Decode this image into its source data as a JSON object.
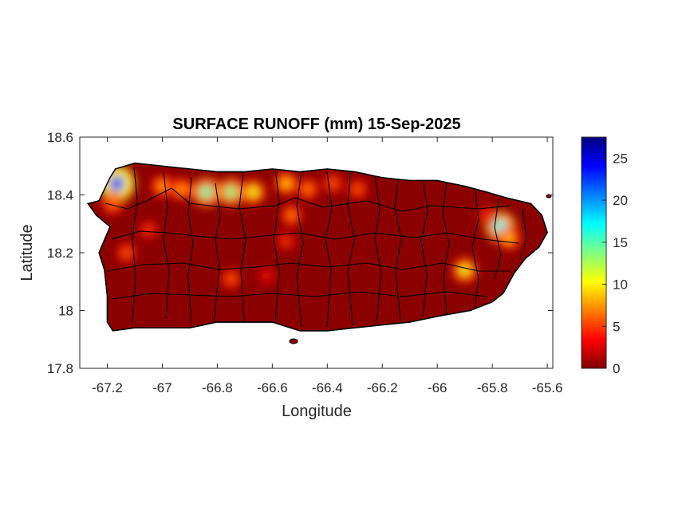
{
  "chart_data": {
    "type": "heatmap",
    "title": "SURFACE RUNOFF (mm) 15-Sep-2025",
    "xlabel": "Longitude",
    "ylabel": "Latitude",
    "xlim": [
      -67.3,
      -65.58
    ],
    "ylim": [
      17.8,
      18.6
    ],
    "x_ticks": [
      -67.2,
      -67,
      -66.8,
      -66.6,
      -66.4,
      -66.2,
      -66,
      -65.8,
      -65.6
    ],
    "x_tick_labels": [
      "-67.2",
      "-67",
      "-66.8",
      "-66.6",
      "-66.4",
      "-66.2",
      "-66",
      "-65.8",
      "-65.6"
    ],
    "y_ticks": [
      17.8,
      18,
      18.2,
      18.4,
      18.6
    ],
    "y_tick_labels": [
      "17.8",
      "18",
      "18.2",
      "18.4",
      "18.6"
    ],
    "grid": false,
    "colormap": "jet",
    "colorbar": {
      "min": 0,
      "max": 27.5,
      "ticks": [
        0,
        5,
        10,
        15,
        20,
        25
      ],
      "tick_labels": [
        "0",
        "5",
        "10",
        "15",
        "20",
        "25"
      ],
      "colors": [
        "#800000",
        "#ff0000",
        "#ff8000",
        "#ffff00",
        "#80ff80",
        "#00ffff",
        "#0080ff",
        "#0000ff",
        "#000080"
      ]
    },
    "background_value": 0,
    "background_color": "#8b0000",
    "island_outline": [
      [
        -67.27,
        18.37
      ],
      [
        -67.23,
        18.38
      ],
      [
        -67.19,
        18.46
      ],
      [
        -67.17,
        18.49
      ],
      [
        -67.1,
        18.51
      ],
      [
        -67.0,
        18.5
      ],
      [
        -66.9,
        18.49
      ],
      [
        -66.8,
        18.48
      ],
      [
        -66.7,
        18.48
      ],
      [
        -66.6,
        18.49
      ],
      [
        -66.5,
        18.48
      ],
      [
        -66.4,
        18.49
      ],
      [
        -66.3,
        18.48
      ],
      [
        -66.2,
        18.46
      ],
      [
        -66.1,
        18.45
      ],
      [
        -66.0,
        18.45
      ],
      [
        -65.9,
        18.43
      ],
      [
        -65.82,
        18.41
      ],
      [
        -65.75,
        18.39
      ],
      [
        -65.66,
        18.37
      ],
      [
        -65.62,
        18.33
      ],
      [
        -65.6,
        18.27
      ],
      [
        -65.63,
        18.22
      ],
      [
        -65.68,
        18.18
      ],
      [
        -65.72,
        18.13
      ],
      [
        -65.76,
        18.06
      ],
      [
        -65.8,
        18.03
      ],
      [
        -65.88,
        18.0
      ],
      [
        -66.0,
        17.98
      ],
      [
        -66.1,
        17.96
      ],
      [
        -66.2,
        17.95
      ],
      [
        -66.3,
        17.94
      ],
      [
        -66.4,
        17.93
      ],
      [
        -66.5,
        17.93
      ],
      [
        -66.6,
        17.96
      ],
      [
        -66.7,
        17.96
      ],
      [
        -66.8,
        17.96
      ],
      [
        -66.9,
        17.94
      ],
      [
        -67.0,
        17.94
      ],
      [
        -67.1,
        17.94
      ],
      [
        -67.18,
        17.93
      ],
      [
        -67.2,
        17.96
      ],
      [
        -67.2,
        18.05
      ],
      [
        -67.21,
        18.14
      ],
      [
        -67.23,
        18.2
      ],
      [
        -67.19,
        18.29
      ],
      [
        -67.24,
        18.33
      ]
    ],
    "hotspots": [
      {
        "x": -67.165,
        "y": 18.44,
        "value": 22
      },
      {
        "x": -67.18,
        "y": 18.37,
        "value": 7
      },
      {
        "x": -67.13,
        "y": 18.2,
        "value": 6
      },
      {
        "x": -67.05,
        "y": 18.28,
        "value": 5
      },
      {
        "x": -67.0,
        "y": 18.43,
        "value": 8
      },
      {
        "x": -66.93,
        "y": 18.42,
        "value": 8
      },
      {
        "x": -66.84,
        "y": 18.41,
        "value": 15
      },
      {
        "x": -66.75,
        "y": 18.41,
        "value": 14
      },
      {
        "x": -66.67,
        "y": 18.41,
        "value": 11
      },
      {
        "x": -66.55,
        "y": 18.44,
        "value": 9
      },
      {
        "x": -66.47,
        "y": 18.42,
        "value": 7
      },
      {
        "x": -66.53,
        "y": 18.33,
        "value": 7
      },
      {
        "x": -66.55,
        "y": 18.24,
        "value": 5
      },
      {
        "x": -66.38,
        "y": 18.44,
        "value": 6
      },
      {
        "x": -66.29,
        "y": 18.42,
        "value": 6
      },
      {
        "x": -66.75,
        "y": 18.11,
        "value": 6
      },
      {
        "x": -66.62,
        "y": 18.12,
        "value": 4
      },
      {
        "x": -65.9,
        "y": 18.14,
        "value": 11
      },
      {
        "x": -65.77,
        "y": 18.29,
        "value": 17
      },
      {
        "x": -65.74,
        "y": 18.25,
        "value": 9
      },
      {
        "x": -65.82,
        "y": 18.33,
        "value": 5
      }
    ]
  }
}
